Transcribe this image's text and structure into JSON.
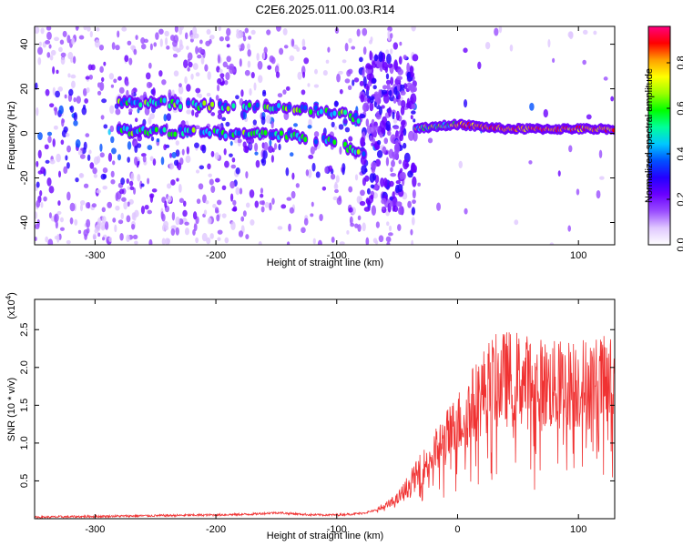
{
  "figure": {
    "title": "C2E6.2025.011.00.03.R14"
  },
  "chart_data": [
    {
      "type": "heatmap",
      "xlabel": "Height of straight line (km)",
      "ylabel": "Frequency (Hz)",
      "xlim": [
        -350,
        130
      ],
      "ylim": [
        -50,
        48
      ],
      "xticks": [
        -300,
        -200,
        -100,
        0,
        100
      ],
      "yticks": [
        -40,
        -20,
        0,
        20,
        40
      ],
      "colorbar": {
        "label": "Normalized spectral amplitude",
        "range": [
          0,
          0.96
        ],
        "ticks": [
          0.0,
          0.2,
          0.4,
          0.6,
          0.8
        ],
        "colormap": [
          "#ffffff",
          "#e0c8ff",
          "#9a4dff",
          "#6a00ff",
          "#2400ff",
          "#0050ff",
          "#00c8ff",
          "#00ff9a",
          "#00ff00",
          "#9aff00",
          "#ffff00",
          "#ffa000",
          "#ff0000",
          "#ff0080"
        ]
      },
      "features": [
        {
          "name": "upper band",
          "x": [
            -280,
            -250,
            -200,
            -160,
            -140,
            -110,
            -90,
            -80
          ],
          "y": [
            14,
            14,
            12,
            12,
            11,
            10,
            8,
            6
          ]
        },
        {
          "name": "lower band",
          "x": [
            -280,
            -250,
            -200,
            -160,
            -140,
            -110,
            -95,
            -85,
            -75
          ],
          "y": [
            1,
            1,
            0,
            0,
            -1,
            -3,
            -5,
            -8,
            -10
          ]
        },
        {
          "name": "steady line",
          "x": [
            -35,
            -20,
            0,
            40,
            80,
            130
          ],
          "y": [
            2,
            3,
            4,
            2,
            2,
            2
          ]
        }
      ]
    },
    {
      "type": "line",
      "xlabel": "Height of straight line (km)",
      "ylabel": "SNR (10 * v/v)",
      "y_multiplier": "(x10",
      "y_multiplier_exp": "4",
      "y_multiplier_close": ")",
      "xlim": [
        -350,
        130
      ],
      "ylim": [
        0,
        2.9
      ],
      "xticks": [
        -300,
        -200,
        -100,
        0,
        100
      ],
      "yticks": [
        0.5,
        1.0,
        1.5,
        2.0,
        2.5
      ],
      "line_color": "#f03232",
      "x": [
        -350,
        -300,
        -250,
        -200,
        -170,
        -150,
        -140,
        -120,
        -100,
        -80,
        -70,
        -60,
        -50,
        -40,
        -30,
        -20,
        -10,
        0,
        10,
        20,
        25,
        30,
        40,
        50,
        60,
        80,
        100,
        130
      ],
      "y": [
        0.02,
        0.03,
        0.04,
        0.05,
        0.06,
        0.08,
        0.07,
        0.05,
        0.05,
        0.07,
        0.1,
        0.16,
        0.25,
        0.45,
        0.65,
        0.85,
        1.05,
        1.25,
        1.45,
        1.65,
        1.75,
        1.8,
        1.85,
        1.85,
        1.8,
        1.75,
        1.78,
        1.8
      ]
    }
  ]
}
